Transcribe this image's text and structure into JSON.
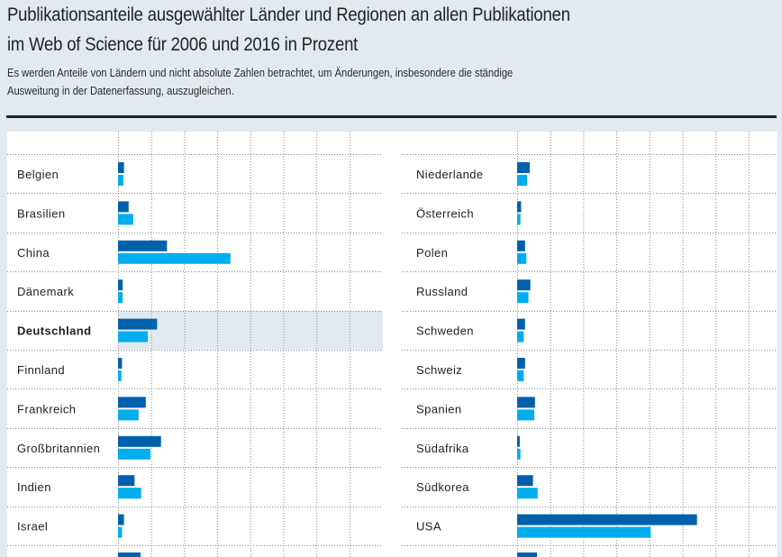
{
  "header": {
    "title_lines": [
      "Publikationsanteile ausgewählter Länder und Regionen an allen Publikationen",
      "im Web of Science für 2006 und 2016 in Prozent"
    ],
    "subtitle_lines": [
      "Es werden Anteile von Ländern und nicht absolute Zahlen betrachtet, um Änderungen, insbesondere die ständige",
      "Ausweitung in der Datenerfassung, auszugleichen."
    ]
  },
  "colors": {
    "series_2006": "#0060ac",
    "series_2016": "#00adee",
    "highlight_row": "#e2eaf0",
    "background": "#e2eaf0"
  },
  "chart_data": {
    "type": "bar",
    "orientation": "horizontal",
    "title": "Publikationsanteile ausgewählter Länder und Regionen an allen Publikationen im Web of Science für 2006 und 2016 in Prozent",
    "xlabel": "",
    "ylabel": "",
    "unit": "Prozent",
    "xlim": [
      0,
      40
    ],
    "grid": true,
    "grid_step": 5,
    "highlight": "Deutschland",
    "series_names": [
      "2006",
      "2016"
    ],
    "panels": [
      {
        "categories": [
          "Belgien",
          "Brasilien",
          "China",
          "Dänemark",
          "Deutschland",
          "Finnland",
          "Frankreich",
          "Großbritannien",
          "Indien",
          "Israel"
        ],
        "series": [
          {
            "name": "2006",
            "values": [
              0.9,
              1.6,
              7.4,
              0.7,
              5.9,
              0.6,
              4.2,
              6.5,
              2.5,
              0.9
            ]
          },
          {
            "name": "2016",
            "values": [
              0.8,
              2.3,
              17.0,
              0.7,
              4.5,
              0.5,
              3.1,
              4.9,
              3.5,
              0.6
            ]
          }
        ]
      },
      {
        "categories": [
          "Niederlande",
          "Österreich",
          "Polen",
          "Russland",
          "Schweden",
          "Schweiz",
          "Spanien",
          "Südafrika",
          "Südkorea",
          "USA"
        ],
        "series": [
          {
            "name": "2006",
            "values": [
              1.9,
              0.6,
              1.2,
              2.0,
              1.2,
              1.2,
              2.7,
              0.4,
              2.4,
              27.2
            ]
          },
          {
            "name": "2016",
            "values": [
              1.5,
              0.5,
              1.4,
              1.7,
              1.0,
              1.0,
              2.6,
              0.5,
              3.1,
              20.2
            ]
          }
        ]
      }
    ]
  }
}
